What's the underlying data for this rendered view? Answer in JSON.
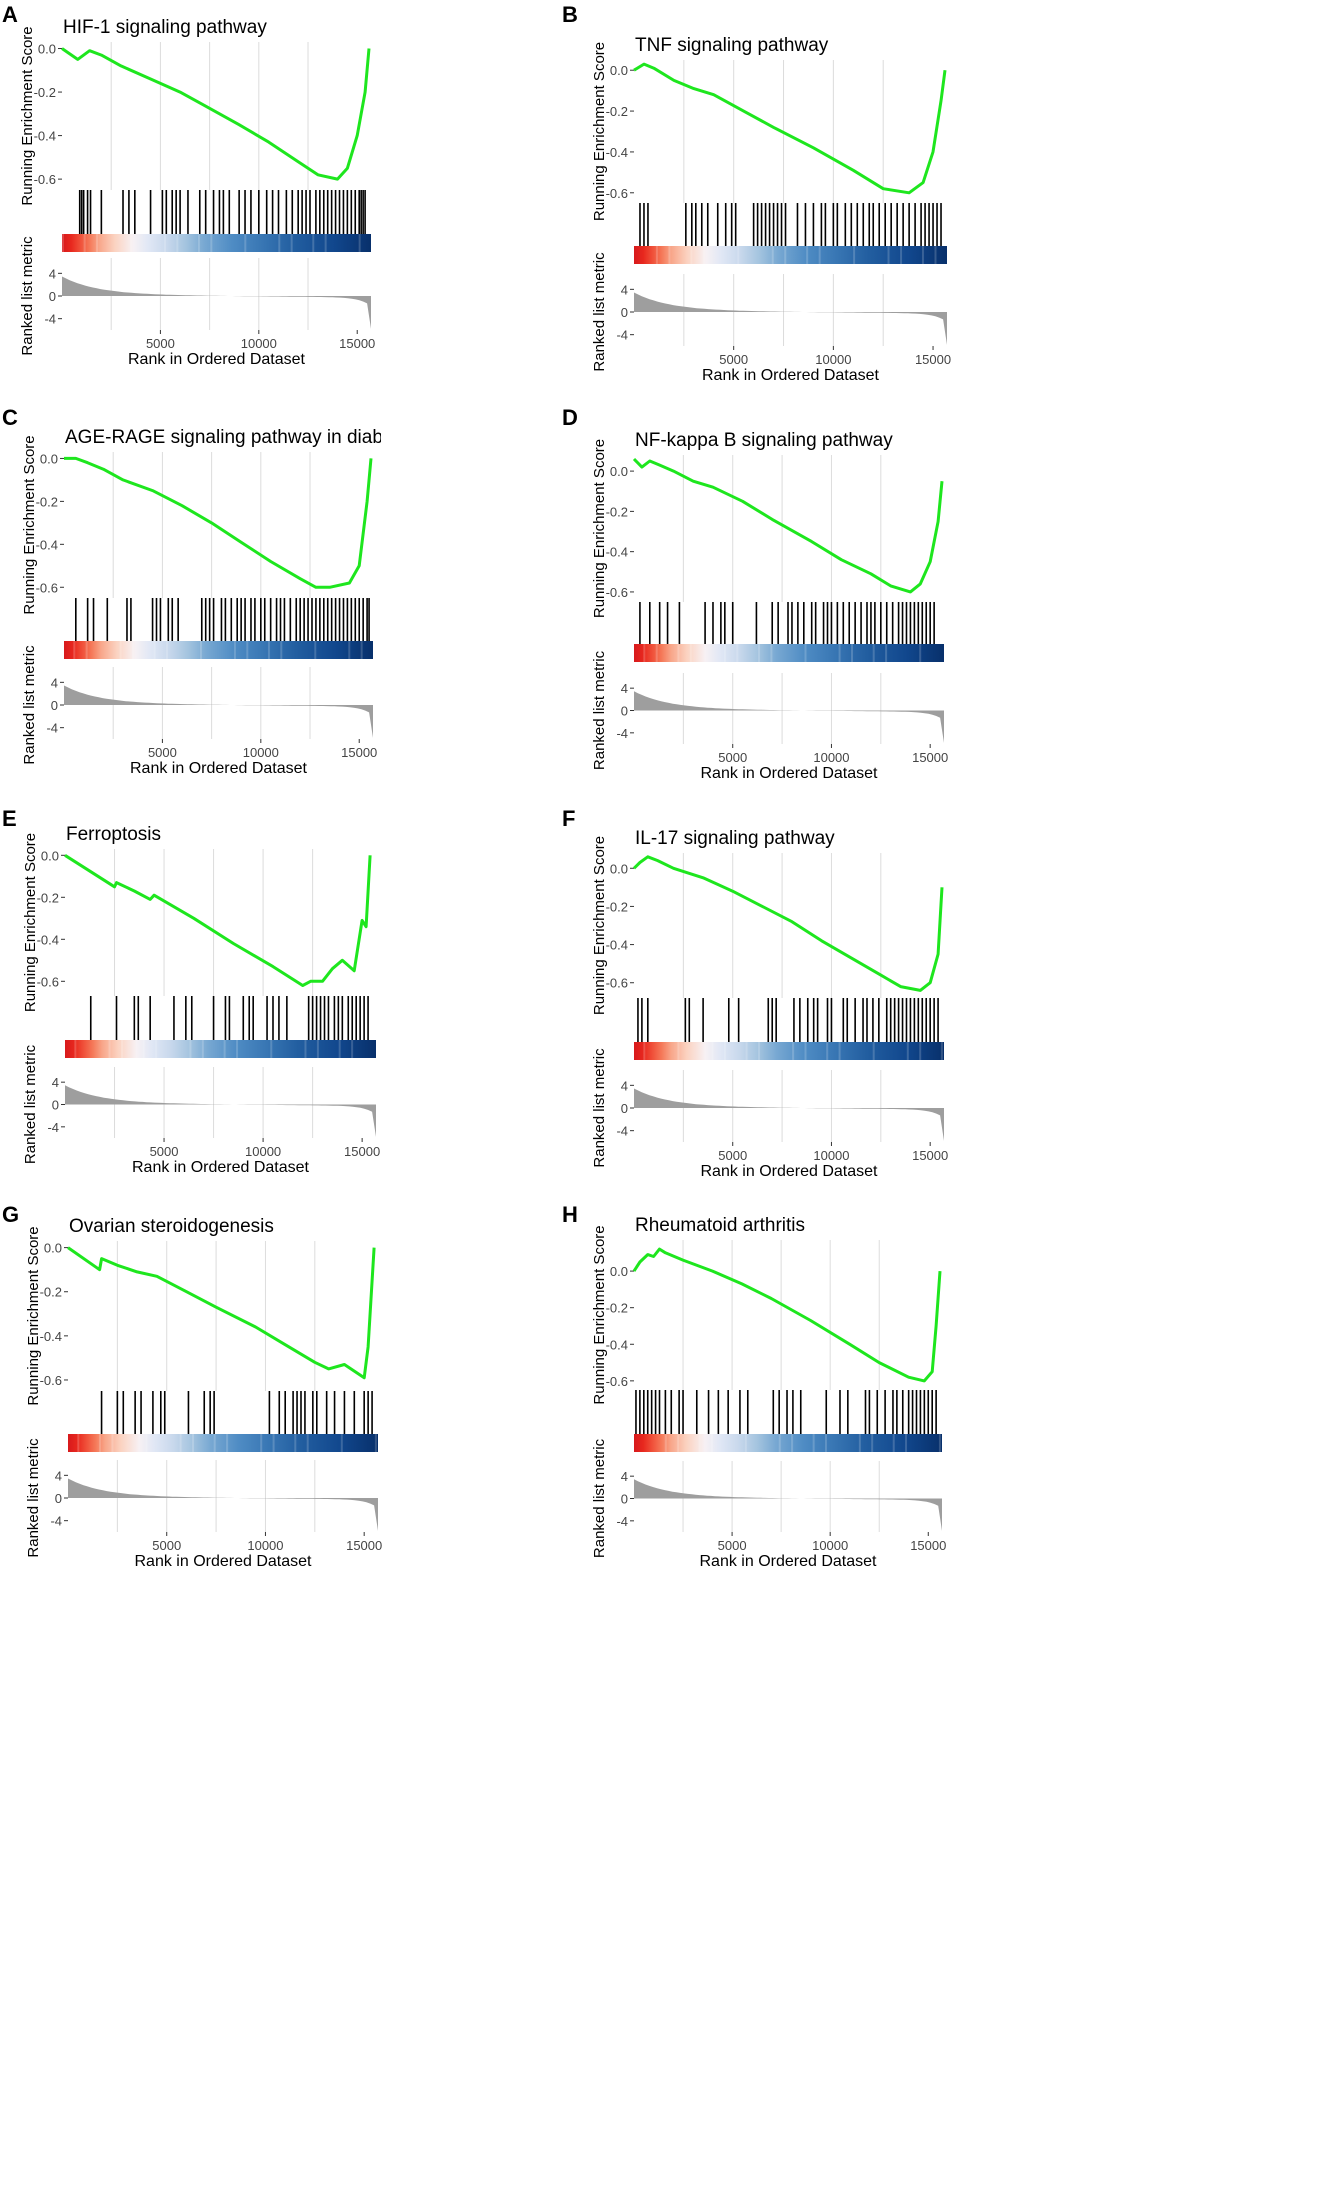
{
  "figure": {
    "colors": {
      "enrichment_line": "#1ee61e",
      "hit_ticks": "#000000",
      "metric_area": "#9e9e9e",
      "gridline": "#dcdcdc",
      "heat_red": "#e8281e",
      "heat_blue": "#0a2e78"
    },
    "shared": {
      "ylabel_es": "Running Enrichment Score",
      "ylabel_metric": "Ranked list metric",
      "xlabel": "Rank in Ordered Dataset",
      "x_ticks": [
        "5000",
        "10000",
        "15000"
      ],
      "metric_ticks": [
        "4",
        "0",
        "-4"
      ]
    }
  },
  "chart_data": [
    {
      "panel": "A",
      "type": "line",
      "title": "HIF-1 signaling pathway",
      "xlabel": "Rank in Ordered Dataset",
      "ylabel": "Running Enrichment Score",
      "ylabel_metric": "Ranked list metric",
      "xlim": [
        0,
        15700
      ],
      "ylim": [
        -0.65,
        0.03
      ],
      "y_ticks": [
        0.0,
        -0.2,
        -0.4,
        -0.6
      ],
      "y_tick_labels": [
        "0.0",
        "-0.2",
        "-0.4",
        "-0.6"
      ],
      "x_ticks": [
        5000,
        10000,
        15000
      ],
      "x_tick_labels": [
        "5000",
        "10000",
        "15000"
      ],
      "metric_ticks": [
        4,
        0,
        -4
      ],
      "metric_tick_labels": [
        "4",
        "0",
        "-4"
      ],
      "es": [
        [
          0,
          0.0
        ],
        [
          800,
          -0.05
        ],
        [
          1400,
          -0.01
        ],
        [
          2000,
          -0.03
        ],
        [
          3000,
          -0.08
        ],
        [
          4500,
          -0.14
        ],
        [
          6000,
          -0.2
        ],
        [
          7200,
          -0.26
        ],
        [
          9000,
          -0.35
        ],
        [
          10500,
          -0.43
        ],
        [
          12000,
          -0.52
        ],
        [
          13000,
          -0.58
        ],
        [
          14000,
          -0.6
        ],
        [
          14500,
          -0.55
        ],
        [
          15000,
          -0.4
        ],
        [
          15400,
          -0.2
        ],
        [
          15600,
          0.0
        ]
      ],
      "hits": [
        900,
        1000,
        1100,
        1300,
        1450,
        2000,
        3100,
        3400,
        3700,
        4500,
        5100,
        5300,
        5600,
        5800,
        6000,
        6400,
        7000,
        7300,
        7700,
        8000,
        8200,
        8500,
        9000,
        9300,
        9600,
        10000,
        10400,
        10700,
        11000,
        11400,
        11700,
        12000,
        12200,
        12400,
        12600,
        12900,
        13100,
        13300,
        13500,
        13700,
        13900,
        14100,
        14300,
        14500,
        14700,
        14900,
        15100,
        15200,
        15300,
        15400
      ],
      "es_min": -0.6
    },
    {
      "panel": "B",
      "type": "line",
      "title": "TNF signaling pathway",
      "xlabel": "Rank in Ordered Dataset",
      "ylabel": "Running Enrichment Score",
      "ylabel_metric": "Ranked list metric",
      "xlim": [
        0,
        15700
      ],
      "ylim": [
        -0.65,
        0.05
      ],
      "y_ticks": [
        0.0,
        -0.2,
        -0.4,
        -0.6
      ],
      "y_tick_labels": [
        "0.0",
        "-0.2",
        "-0.4",
        "-0.6"
      ],
      "x_ticks": [
        5000,
        10000,
        15000
      ],
      "x_tick_labels": [
        "5000",
        "10000",
        "15000"
      ],
      "metric_ticks": [
        4,
        0,
        -4
      ],
      "metric_tick_labels": [
        "4",
        "0",
        "-4"
      ],
      "es": [
        [
          0,
          0.0
        ],
        [
          500,
          0.03
        ],
        [
          1000,
          0.01
        ],
        [
          2000,
          -0.05
        ],
        [
          3000,
          -0.09
        ],
        [
          4000,
          -0.12
        ],
        [
          5500,
          -0.2
        ],
        [
          7000,
          -0.28
        ],
        [
          9000,
          -0.38
        ],
        [
          11000,
          -0.49
        ],
        [
          12500,
          -0.58
        ],
        [
          13800,
          -0.6
        ],
        [
          14500,
          -0.55
        ],
        [
          15000,
          -0.4
        ],
        [
          15400,
          -0.15
        ],
        [
          15600,
          0.0
        ]
      ],
      "hits": [
        300,
        500,
        700,
        2600,
        2900,
        3100,
        3400,
        3700,
        4200,
        4600,
        4900,
        5100,
        6000,
        6200,
        6400,
        6600,
        6800,
        7000,
        7200,
        7400,
        7600,
        8200,
        8600,
        9000,
        9400,
        9600,
        10000,
        10200,
        10600,
        10900,
        11200,
        11500,
        11800,
        12000,
        12300,
        12600,
        12900,
        13200,
        13500,
        13800,
        14100,
        14400,
        14600,
        14800,
        15000,
        15200,
        15400
      ],
      "es_min": -0.6
    },
    {
      "panel": "C",
      "type": "line",
      "title": "AGE-RAGE signaling pathway in diabetic com",
      "xlabel": "Rank in Ordered Dataset",
      "ylabel": "Running Enrichment Score",
      "ylabel_metric": "Ranked list metric",
      "xlim": [
        0,
        15700
      ],
      "ylim": [
        -0.65,
        0.03
      ],
      "y_ticks": [
        0.0,
        -0.2,
        -0.4,
        -0.6
      ],
      "y_tick_labels": [
        "0.0",
        "-0.2",
        "-0.4",
        "-0.6"
      ],
      "x_ticks": [
        5000,
        10000,
        15000
      ],
      "x_tick_labels": [
        "5000",
        "10000",
        "15000"
      ],
      "metric_ticks": [
        4,
        0,
        -4
      ],
      "metric_tick_labels": [
        "4",
        "0",
        "-4"
      ],
      "es": [
        [
          0,
          0.0
        ],
        [
          600,
          0.0
        ],
        [
          1200,
          -0.02
        ],
        [
          2000,
          -0.05
        ],
        [
          3000,
          -0.1
        ],
        [
          4500,
          -0.15
        ],
        [
          6000,
          -0.22
        ],
        [
          7500,
          -0.3
        ],
        [
          9000,
          -0.39
        ],
        [
          10500,
          -0.48
        ],
        [
          12000,
          -0.56
        ],
        [
          12800,
          -0.6
        ],
        [
          13500,
          -0.6
        ],
        [
          14500,
          -0.58
        ],
        [
          15000,
          -0.5
        ],
        [
          15400,
          -0.2
        ],
        [
          15600,
          0.0
        ]
      ],
      "hits": [
        600,
        1200,
        1500,
        2200,
        3200,
        3400,
        4500,
        4700,
        4900,
        5300,
        5500,
        5800,
        7000,
        7200,
        7400,
        7600,
        8000,
        8200,
        8500,
        8800,
        9000,
        9200,
        9500,
        9700,
        10000,
        10200,
        10500,
        10800,
        11000,
        11200,
        11500,
        11800,
        12000,
        12200,
        12400,
        12600,
        12800,
        13000,
        13200,
        13400,
        13600,
        13800,
        14000,
        14200,
        14400,
        14600,
        14800,
        15000,
        15200,
        15400,
        15500
      ],
      "es_min": -0.6
    },
    {
      "panel": "D",
      "type": "line",
      "title": "NF-kappa B signaling pathway",
      "xlabel": "Rank in Ordered Dataset",
      "ylabel": "Running Enrichment Score",
      "ylabel_metric": "Ranked list metric",
      "xlim": [
        0,
        15700
      ],
      "ylim": [
        -0.65,
        0.08
      ],
      "y_ticks": [
        0.0,
        -0.2,
        -0.4,
        -0.6
      ],
      "y_tick_labels": [
        "0.0",
        "-0.2",
        "-0.4",
        "-0.6"
      ],
      "x_ticks": [
        5000,
        10000,
        15000
      ],
      "x_tick_labels": [
        "5000",
        "10000",
        "15000"
      ],
      "metric_ticks": [
        4,
        0,
        -4
      ],
      "metric_tick_labels": [
        "4",
        "0",
        "-4"
      ],
      "es": [
        [
          0,
          0.06
        ],
        [
          400,
          0.02
        ],
        [
          800,
          0.05
        ],
        [
          1300,
          0.03
        ],
        [
          2000,
          0.0
        ],
        [
          3000,
          -0.05
        ],
        [
          4000,
          -0.08
        ],
        [
          5500,
          -0.15
        ],
        [
          7000,
          -0.24
        ],
        [
          9000,
          -0.35
        ],
        [
          10500,
          -0.44
        ],
        [
          12000,
          -0.51
        ],
        [
          13000,
          -0.57
        ],
        [
          14000,
          -0.6
        ],
        [
          14500,
          -0.56
        ],
        [
          15000,
          -0.45
        ],
        [
          15400,
          -0.25
        ],
        [
          15600,
          -0.05
        ]
      ],
      "hits": [
        300,
        800,
        1300,
        1700,
        2300,
        3600,
        4000,
        4400,
        4600,
        5000,
        6200,
        7000,
        7300,
        7800,
        8000,
        8300,
        8600,
        9000,
        9200,
        9600,
        9800,
        10000,
        10300,
        10600,
        10900,
        11200,
        11500,
        11800,
        12000,
        12200,
        12500,
        12800,
        13100,
        13400,
        13600,
        13800,
        14000,
        14200,
        14400,
        14600,
        14800,
        15000,
        15200
      ],
      "es_min": -0.6
    },
    {
      "panel": "E",
      "type": "line",
      "title": "Ferroptosis",
      "xlabel": "Rank in Ordered Dataset",
      "ylabel": "Running Enrichment Score",
      "ylabel_metric": "Ranked list metric",
      "xlim": [
        0,
        15700
      ],
      "ylim": [
        -0.67,
        0.03
      ],
      "y_ticks": [
        0.0,
        -0.2,
        -0.4,
        -0.6
      ],
      "y_tick_labels": [
        "0.0",
        "-0.2",
        "-0.4",
        "-0.6"
      ],
      "x_ticks": [
        5000,
        10000,
        15000
      ],
      "x_tick_labels": [
        "5000",
        "10000",
        "15000"
      ],
      "metric_ticks": [
        4,
        0,
        -4
      ],
      "metric_tick_labels": [
        "4",
        "0",
        "-4"
      ],
      "es": [
        [
          0,
          0.0
        ],
        [
          2500,
          -0.15
        ],
        [
          2600,
          -0.13
        ],
        [
          3500,
          -0.17
        ],
        [
          4300,
          -0.21
        ],
        [
          4500,
          -0.19
        ],
        [
          6500,
          -0.3
        ],
        [
          8500,
          -0.42
        ],
        [
          10500,
          -0.53
        ],
        [
          12000,
          -0.62
        ],
        [
          12400,
          -0.6
        ],
        [
          13000,
          -0.6
        ],
        [
          13500,
          -0.54
        ],
        [
          14000,
          -0.5
        ],
        [
          14600,
          -0.55
        ],
        [
          15000,
          -0.31
        ],
        [
          15200,
          -0.34
        ],
        [
          15400,
          0.0
        ]
      ],
      "hits": [
        1300,
        2600,
        3500,
        3700,
        4300,
        5500,
        6100,
        6400,
        7500,
        8100,
        8300,
        9000,
        9300,
        9500,
        10200,
        10500,
        10800,
        11200,
        12300,
        12500,
        12700,
        12900,
        13100,
        13300,
        13600,
        13800,
        14000,
        14300,
        14500,
        14700,
        14900,
        15100,
        15300
      ],
      "es_min": -0.62
    },
    {
      "panel": "F",
      "type": "line",
      "title": "IL-17 signaling pathway",
      "xlabel": "Rank in Ordered Dataset",
      "ylabel": "Running Enrichment Score",
      "ylabel_metric": "Ranked list metric",
      "xlim": [
        0,
        15700
      ],
      "ylim": [
        -0.68,
        0.08
      ],
      "y_ticks": [
        0.0,
        -0.2,
        -0.4,
        -0.6
      ],
      "y_tick_labels": [
        "0.0",
        "-0.2",
        "-0.4",
        "-0.6"
      ],
      "x_ticks": [
        5000,
        10000,
        15000
      ],
      "x_tick_labels": [
        "5000",
        "10000",
        "15000"
      ],
      "metric_ticks": [
        4,
        0,
        -4
      ],
      "metric_tick_labels": [
        "4",
        "0",
        "-4"
      ],
      "es": [
        [
          0,
          0.0
        ],
        [
          300,
          0.03
        ],
        [
          700,
          0.06
        ],
        [
          1200,
          0.04
        ],
        [
          2000,
          0.0
        ],
        [
          3500,
          -0.05
        ],
        [
          5000,
          -0.12
        ],
        [
          6500,
          -0.2
        ],
        [
          8000,
          -0.28
        ],
        [
          9500,
          -0.38
        ],
        [
          11000,
          -0.47
        ],
        [
          12500,
          -0.56
        ],
        [
          13500,
          -0.62
        ],
        [
          14500,
          -0.64
        ],
        [
          15000,
          -0.6
        ],
        [
          15400,
          -0.45
        ],
        [
          15600,
          -0.1
        ]
      ],
      "hits": [
        200,
        400,
        700,
        2600,
        2800,
        3500,
        4800,
        5300,
        6800,
        7000,
        7200,
        8100,
        8400,
        8800,
        9100,
        9300,
        9800,
        10000,
        10600,
        10800,
        11200,
        11600,
        11800,
        12100,
        12400,
        12800,
        13000,
        13200,
        13400,
        13600,
        13800,
        14000,
        14200,
        14400,
        14600,
        14800,
        15000,
        15200,
        15400
      ],
      "es_min": -0.64
    },
    {
      "panel": "G",
      "type": "line",
      "title": "Ovarian steroidogenesis",
      "xlabel": "Rank in Ordered Dataset",
      "ylabel": "Running Enrichment Score",
      "ylabel_metric": "Ranked list metric",
      "xlim": [
        0,
        15700
      ],
      "ylim": [
        -0.65,
        0.03
      ],
      "y_ticks": [
        0.0,
        -0.2,
        -0.4,
        -0.6
      ],
      "y_tick_labels": [
        "0.0",
        "-0.2",
        "-0.4",
        "-0.6"
      ],
      "x_ticks": [
        5000,
        10000,
        15000
      ],
      "x_tick_labels": [
        "5000",
        "10000",
        "15000"
      ],
      "metric_ticks": [
        4,
        0,
        -4
      ],
      "metric_tick_labels": [
        "4",
        "0",
        "-4"
      ],
      "es": [
        [
          0,
          0.0
        ],
        [
          1600,
          -0.1
        ],
        [
          1700,
          -0.05
        ],
        [
          2500,
          -0.08
        ],
        [
          3500,
          -0.11
        ],
        [
          4500,
          -0.13
        ],
        [
          6000,
          -0.2
        ],
        [
          7500,
          -0.27
        ],
        [
          9500,
          -0.36
        ],
        [
          11000,
          -0.44
        ],
        [
          12500,
          -0.52
        ],
        [
          13200,
          -0.55
        ],
        [
          14000,
          -0.53
        ],
        [
          15000,
          -0.59
        ],
        [
          15200,
          -0.45
        ],
        [
          15500,
          0.0
        ]
      ],
      "hits": [
        1700,
        2500,
        2800,
        3400,
        3700,
        4300,
        4700,
        4900,
        6100,
        6900,
        7200,
        7400,
        10200,
        10700,
        11000,
        11400,
        11600,
        11800,
        12000,
        12400,
        12600,
        13100,
        13500,
        14000,
        14500,
        15000,
        15200,
        15400
      ],
      "es_min": -0.59
    },
    {
      "panel": "H",
      "type": "line",
      "title": "Rheumatoid arthritis",
      "xlabel": "Rank in Ordered Dataset",
      "ylabel": "Running Enrichment Score",
      "ylabel_metric": "Ranked list metric",
      "xlim": [
        0,
        15700
      ],
      "ylim": [
        -0.65,
        0.17
      ],
      "y_ticks": [
        0.0,
        -0.2,
        -0.4,
        -0.6
      ],
      "y_tick_labels": [
        "0.0",
        "-0.2",
        "-0.4",
        "-0.6"
      ],
      "x_ticks": [
        5000,
        10000,
        15000
      ],
      "x_tick_labels": [
        "5000",
        "10000",
        "15000"
      ],
      "metric_ticks": [
        4,
        0,
        -4
      ],
      "metric_tick_labels": [
        "4",
        "0",
        "-4"
      ],
      "es": [
        [
          0,
          0.0
        ],
        [
          300,
          0.05
        ],
        [
          700,
          0.09
        ],
        [
          1000,
          0.08
        ],
        [
          1300,
          0.12
        ],
        [
          1600,
          0.1
        ],
        [
          2500,
          0.06
        ],
        [
          4000,
          0.0
        ],
        [
          5500,
          -0.07
        ],
        [
          7000,
          -0.15
        ],
        [
          9000,
          -0.27
        ],
        [
          11000,
          -0.4
        ],
        [
          12500,
          -0.5
        ],
        [
          14000,
          -0.58
        ],
        [
          14800,
          -0.6
        ],
        [
          15200,
          -0.55
        ],
        [
          15400,
          -0.3
        ],
        [
          15600,
          0.0
        ]
      ],
      "hits": [
        100,
        300,
        500,
        700,
        900,
        1100,
        1300,
        1600,
        1900,
        2300,
        2500,
        3200,
        3800,
        4300,
        4800,
        5400,
        5800,
        7100,
        7400,
        7800,
        8100,
        8500,
        9800,
        10500,
        10900,
        11800,
        12000,
        12400,
        12800,
        13200,
        13400,
        13700,
        14000,
        14200,
        14400,
        14600,
        14800,
        15000,
        15200,
        15400
      ],
      "es_min": -0.6
    }
  ]
}
